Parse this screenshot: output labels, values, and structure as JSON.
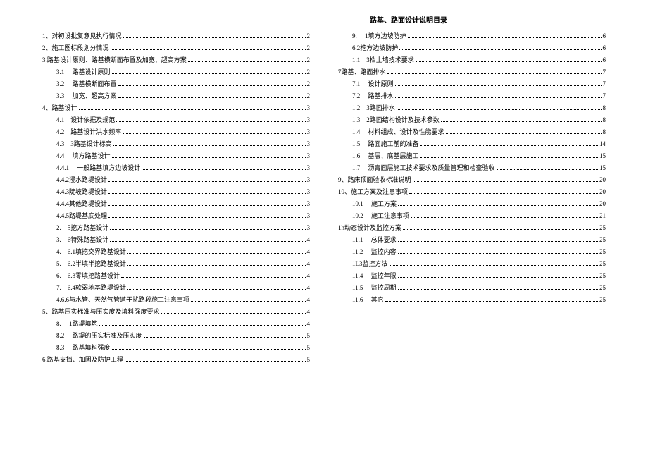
{
  "title": "路基、路面设计说明目录",
  "left": [
    {
      "indent": 0,
      "label": "1、对初设批复意见执行情况",
      "page": "2"
    },
    {
      "indent": 0,
      "label": "2、施工图标段划分情况",
      "page": "2"
    },
    {
      "indent": 0,
      "label": "3.路基设计原则、路基横断面布置及加宽、超高方案",
      "page": "2"
    },
    {
      "indent": 1,
      "label": "3.1　 路基设计原则",
      "page": "2"
    },
    {
      "indent": 1,
      "label": "3.2　 路基横断面布置",
      "page": "2"
    },
    {
      "indent": 1,
      "label": "3.3　 加宽、超高方案",
      "page": "2"
    },
    {
      "indent": 0,
      "label": "4、路基设计",
      "page": "3"
    },
    {
      "indent": 1,
      "label": "4.1　设计依据及规范",
      "page": "3"
    },
    {
      "indent": 1,
      "label": "4.2　路基设计洪水频率",
      "page": "3"
    },
    {
      "indent": 1,
      "label": "4.3　3路基设计标高",
      "page": "3"
    },
    {
      "indent": 1,
      "label": "4.4　 填方路基设计",
      "page": "3"
    },
    {
      "indent": 1,
      "label": "4.4.1　 一般路基填方边坡设计",
      "page": "3"
    },
    {
      "indent": 1,
      "label": "4.4.2浸水路堤设计",
      "page": "3"
    },
    {
      "indent": 1,
      "label": "4.4.3陡坡路堤设计",
      "page": "3"
    },
    {
      "indent": 1,
      "label": "4.4.4其他路堤设计",
      "page": "3"
    },
    {
      "indent": 1,
      "label": "4.4.5路堤基底处理",
      "page": "3"
    },
    {
      "indent": 1,
      "label": "2.　5挖方路基设计",
      "page": "3"
    },
    {
      "indent": 1,
      "label": "3.　6特殊路基设计",
      "page": "4"
    },
    {
      "indent": 1,
      "label": "4.　6.1填挖交界路基设计",
      "page": "4"
    },
    {
      "indent": 1,
      "label": "5.　6.2半填半挖路基设计",
      "page": "4"
    },
    {
      "indent": 1,
      "label": "6.　6.3零填挖路基设计",
      "page": "4"
    },
    {
      "indent": 1,
      "label": "7.　6.4软弱地基路堤设计",
      "page": "4"
    },
    {
      "indent": 1,
      "label": "4.6.6与水管、天然气管道干扰路段施工注意事项",
      "page": "4"
    },
    {
      "indent": 0,
      "label": "5、路基压实标准与压实度及填料强度要求",
      "page": "4"
    },
    {
      "indent": 1,
      "label": "8.　 1路堤填筑",
      "page": "4"
    },
    {
      "indent": 1,
      "label": "8.2　 路堤的压实标准及压实度",
      "page": "5"
    },
    {
      "indent": 1,
      "label": "8.3　 路基填料强度",
      "page": "5"
    },
    {
      "indent": 0,
      "label": "6.路基支挡、加固及防护工程",
      "page": "5"
    }
  ],
  "right": [
    {
      "indent": 1,
      "label": "9.　 1填方边坡防护",
      "page": "6"
    },
    {
      "indent": 1,
      "label": "6.2挖方边坡防护",
      "page": "6"
    },
    {
      "indent": 1,
      "label": "1.1　3挡土墙技术要求",
      "page": "6"
    },
    {
      "indent": 0,
      "label": "7路基、路面排水",
      "page": "7"
    },
    {
      "indent": 1,
      "label": "7.1　 设计原则",
      "page": "7"
    },
    {
      "indent": 1,
      "label": "7.2　 路基排水",
      "page": "7"
    },
    {
      "indent": 1,
      "label": "1.2　3路面排水",
      "page": "8"
    },
    {
      "indent": 1,
      "label": "1.3　2路面结构设计及技术参数",
      "page": "8"
    },
    {
      "indent": 1,
      "label": "1.4　 材料组成、设计及性能要求",
      "page": "8"
    },
    {
      "indent": 1,
      "label": "1.5　 路面施工前的准备",
      "page": "14"
    },
    {
      "indent": 1,
      "label": "1.6　 基层、底基层施工",
      "page": "15"
    },
    {
      "indent": 1,
      "label": "1.7　 沥青面层施工技术要求及质量管理和检查验收",
      "page": "15"
    },
    {
      "indent": 0,
      "label": "9、路床顶面验收标准说明",
      "page": "20"
    },
    {
      "indent": 0,
      "label": "10、施工方案及注意事项",
      "page": "20"
    },
    {
      "indent": 1,
      "label": "10.1　 施工方案",
      "page": "20"
    },
    {
      "indent": 1,
      "label": "10.2　 施工注意事项",
      "page": "21"
    },
    {
      "indent": 0,
      "label": "1h动态设计及监控方案",
      "page": "25"
    },
    {
      "indent": 1,
      "label": "11.1　 总体要求",
      "page": "25"
    },
    {
      "indent": 1,
      "label": "11.2　 监控内容",
      "page": "25"
    },
    {
      "indent": 1,
      "label": "1L3监控方法",
      "page": "25"
    },
    {
      "indent": 1,
      "label": "11.4　 监控年限",
      "page": "25"
    },
    {
      "indent": 1,
      "label": "11.5　 监控周期",
      "page": "25"
    },
    {
      "indent": 1,
      "label": "11.6　 其它",
      "page": "25"
    }
  ]
}
